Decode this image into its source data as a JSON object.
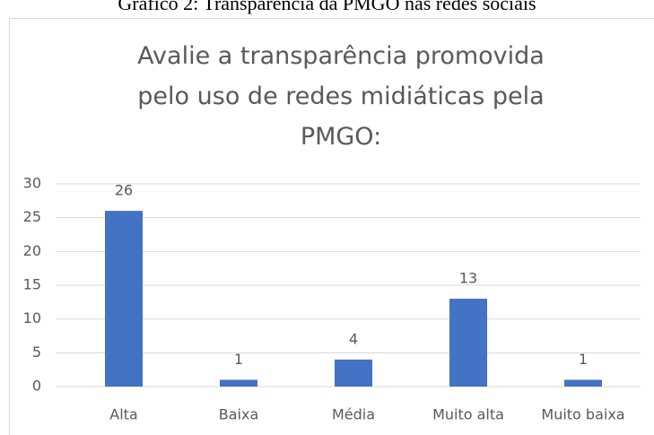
{
  "caption": "Gráfico 2: Transparência da PMGO nas redes sociais",
  "chart_data": {
    "type": "bar",
    "title": "Avalie a transparência promovida pelo uso de redes midiáticas pela PMGO:",
    "categories": [
      "Alta",
      "Baixa",
      "Média",
      "Muito alta",
      "Muito baixa"
    ],
    "values": [
      26,
      1,
      4,
      13,
      1
    ],
    "color": "#4472c4",
    "ylim": [
      0,
      30
    ],
    "yticks": [
      0,
      5,
      10,
      15,
      20,
      25,
      30
    ],
    "grid": true
  }
}
